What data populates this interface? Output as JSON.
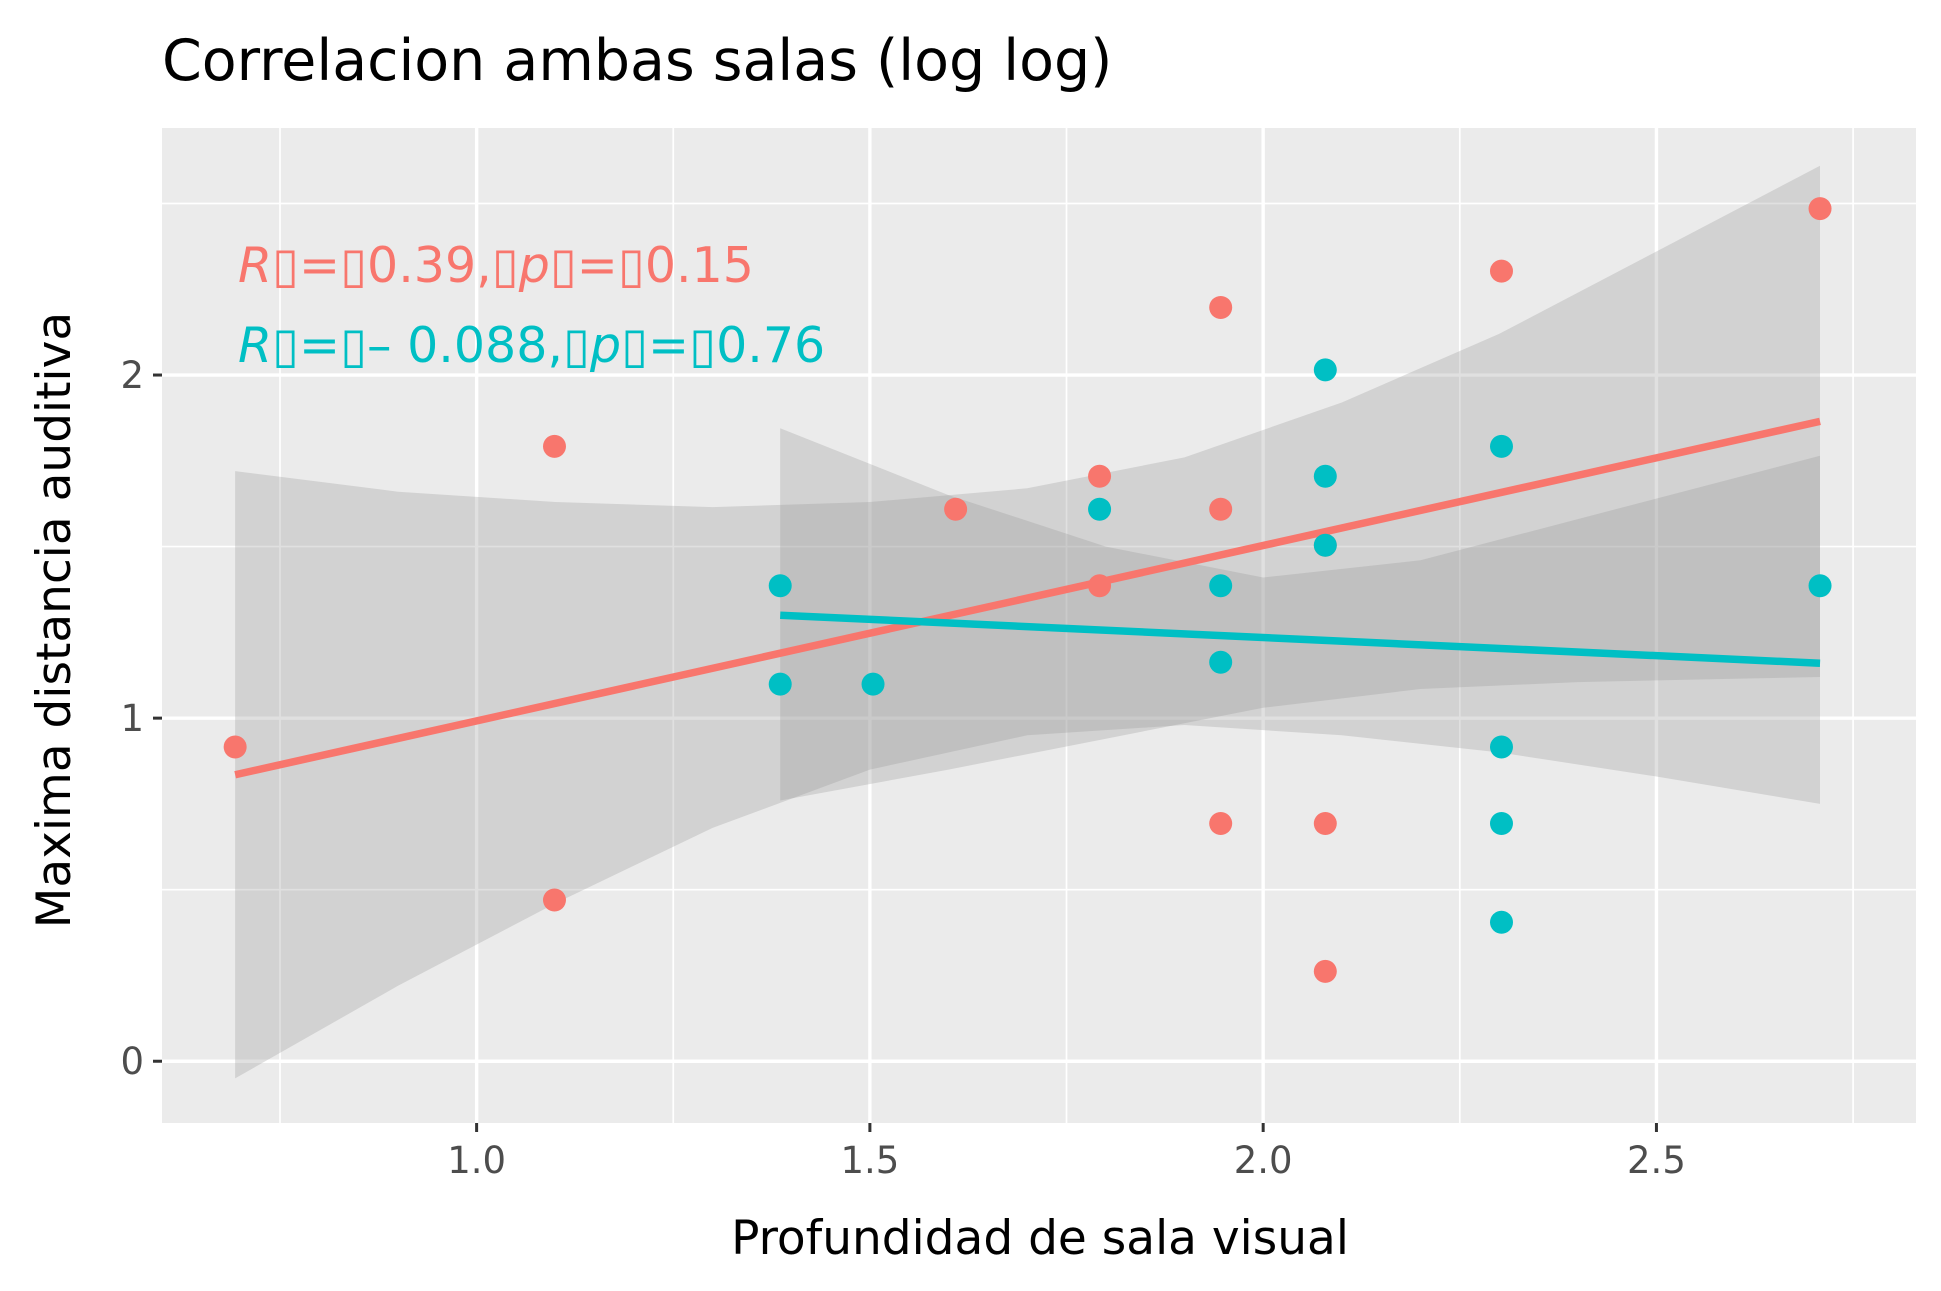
{
  "chart_data": {
    "type": "scatter",
    "title": "Correlacion ambas salas (log log)",
    "xlabel": "Profundidad de sala visual",
    "ylabel": "Maxima distancia auditiva",
    "xlim": [
      0.6,
      2.83
    ],
    "ylim": [
      -0.18,
      2.72
    ],
    "x_ticks": [
      1.0,
      1.5,
      2.0,
      2.5
    ],
    "x_tick_labels": [
      "1.0",
      "1.5",
      "2.0",
      "2.5"
    ],
    "y_ticks": [
      0,
      1,
      2
    ],
    "y_tick_labels": [
      "0",
      "1",
      "2"
    ],
    "grid": true,
    "legend": "none",
    "series": [
      {
        "color": "#F8766D",
        "points": [
          {
            "x": 0.693,
            "y": 0.916
          },
          {
            "x": 1.099,
            "y": 1.792
          },
          {
            "x": 1.099,
            "y": 0.47
          },
          {
            "x": 1.609,
            "y": 1.609
          },
          {
            "x": 1.792,
            "y": 1.705
          },
          {
            "x": 1.792,
            "y": 1.386
          },
          {
            "x": 1.946,
            "y": 2.197
          },
          {
            "x": 1.946,
            "y": 1.609
          },
          {
            "x": 1.946,
            "y": 0.693
          },
          {
            "x": 2.079,
            "y": 1.504
          },
          {
            "x": 2.079,
            "y": 0.693
          },
          {
            "x": 2.079,
            "y": 0.262
          },
          {
            "x": 2.303,
            "y": 2.303
          },
          {
            "x": 2.708,
            "y": 2.485
          }
        ],
        "fit": {
          "x": [
            0.693,
            2.708
          ],
          "y": [
            0.835,
            1.865
          ]
        },
        "band": {
          "x": [
            0.693,
            0.9,
            1.1,
            1.3,
            1.5,
            1.7,
            1.9,
            2.1,
            2.3,
            2.5,
            2.708
          ],
          "lower": [
            -0.05,
            0.22,
            0.46,
            0.68,
            0.85,
            0.95,
            0.98,
            0.95,
            0.9,
            0.83,
            0.75
          ],
          "upper": [
            1.72,
            1.66,
            1.63,
            1.615,
            1.63,
            1.67,
            1.76,
            1.92,
            2.12,
            2.36,
            2.61
          ]
        },
        "stat_text": {
          "r_symbol": "R",
          "r_value": "0.39",
          "p_symbol": "p",
          "p_value": "0.15"
        }
      },
      {
        "color": "#00BFC4",
        "points": [
          {
            "x": 1.386,
            "y": 1.386
          },
          {
            "x": 1.386,
            "y": 1.099
          },
          {
            "x": 1.504,
            "y": 1.099
          },
          {
            "x": 1.792,
            "y": 1.609
          },
          {
            "x": 1.946,
            "y": 1.386
          },
          {
            "x": 1.946,
            "y": 1.163
          },
          {
            "x": 2.079,
            "y": 2.015
          },
          {
            "x": 2.079,
            "y": 1.705
          },
          {
            "x": 2.079,
            "y": 1.504
          },
          {
            "x": 2.303,
            "y": 1.792
          },
          {
            "x": 2.303,
            "y": 0.916
          },
          {
            "x": 2.303,
            "y": 0.693
          },
          {
            "x": 2.303,
            "y": 0.405
          },
          {
            "x": 2.708,
            "y": 1.386
          }
        ],
        "fit": {
          "x": [
            1.386,
            2.708
          ],
          "y": [
            1.3,
            1.16
          ]
        },
        "band": {
          "x": [
            1.386,
            1.6,
            1.8,
            2.0,
            2.2,
            2.4,
            2.6,
            2.708
          ],
          "lower": [
            0.76,
            0.85,
            0.94,
            1.03,
            1.085,
            1.105,
            1.115,
            1.12
          ],
          "upper": [
            1.845,
            1.65,
            1.5,
            1.41,
            1.46,
            1.58,
            1.7,
            1.765
          ]
        },
        "stat_text": {
          "r_symbol": "R",
          "r_value": "– 0.088",
          "p_symbol": "p",
          "p_value": "0.76"
        }
      }
    ]
  }
}
